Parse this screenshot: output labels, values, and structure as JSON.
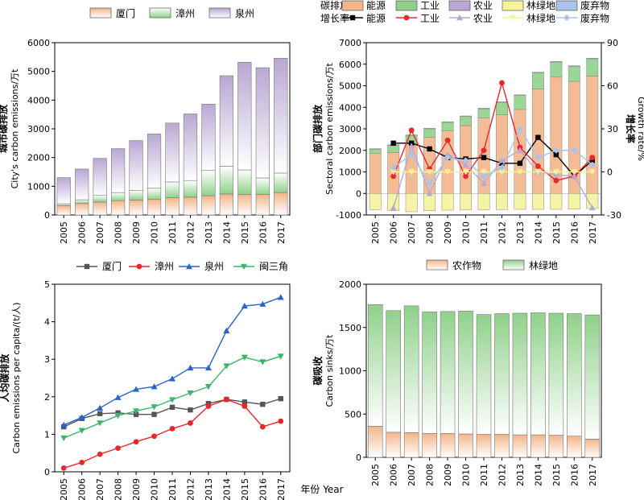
{
  "figure": {
    "shared_xlabel": "年份 Year"
  },
  "chart_data": [
    {
      "id": "a",
      "type": "bar",
      "stacked": true,
      "ylabel_cn": "城市碳排放",
      "ylabel_en": "City's carbon emissions/万t",
      "ylim": [
        0,
        6000
      ],
      "yticks": [
        0,
        1000,
        2000,
        3000,
        4000,
        5000,
        6000
      ],
      "categories": [
        "2005",
        "2006",
        "2007",
        "2008",
        "2009",
        "2010",
        "2011",
        "2012",
        "2013",
        "2014",
        "2015",
        "2016",
        "2017"
      ],
      "legend_position": "top",
      "series": [
        {
          "name": "厦门",
          "color_top": "#f3b58a",
          "color_bottom": "#ffffff",
          "values": [
            320,
            400,
            450,
            500,
            520,
            540,
            600,
            620,
            670,
            730,
            720,
            710,
            780
          ]
        },
        {
          "name": "漳州",
          "color_top": "#ffffff",
          "color_bottom": "#8fd18a",
          "values": [
            70,
            130,
            230,
            280,
            330,
            390,
            550,
            580,
            880,
            970,
            850,
            580,
            680
          ]
        },
        {
          "name": "泉州",
          "color_top": "#b9a7d3",
          "color_bottom": "#ffffff",
          "values": [
            910,
            1070,
            1290,
            1530,
            1740,
            1890,
            2050,
            2320,
            2310,
            3150,
            3750,
            3840,
            4000
          ]
        }
      ]
    },
    {
      "id": "b",
      "type": "bar+line",
      "ylabel_cn": "部门碳排放",
      "ylabel_en": "Sectoral carbon emissions/万t",
      "y2label_cn": "增长率",
      "y2label_en": "Growth rate/%",
      "ylim": [
        -1000,
        7000
      ],
      "yticks": [
        -1000,
        0,
        1000,
        2000,
        3000,
        4000,
        5000,
        6000,
        7000
      ],
      "y2lim": [
        -30,
        90
      ],
      "y2ticks": [
        -30,
        0,
        30,
        60,
        90
      ],
      "categories": [
        "2005",
        "2006",
        "2007",
        "2008",
        "2009",
        "2010",
        "2011",
        "2012",
        "2013",
        "2014",
        "2015",
        "2016",
        "2017"
      ],
      "legend_position": "top",
      "legend_row1_title": "碳排放",
      "legend_row2_title": "增长率",
      "bar_series": [
        {
          "name": "能源",
          "color": "#f3b58a",
          "values": [
            1850,
            1900,
            2300,
            2600,
            2900,
            3150,
            3500,
            3650,
            3900,
            4850,
            5400,
            5200,
            5450
          ]
        },
        {
          "name": "工业",
          "color": "#8fd18a",
          "values": [
            200,
            330,
            390,
            400,
            400,
            420,
            430,
            580,
            650,
            750,
            700,
            700,
            800
          ]
        },
        {
          "name": "农业",
          "color": "#b9a7d3",
          "values": [
            30,
            30,
            30,
            30,
            30,
            30,
            30,
            30,
            30,
            30,
            30,
            30,
            30
          ]
        },
        {
          "name": "林绿地",
          "color": "#f6f29a",
          "values": [
            -750,
            -800,
            -850,
            -800,
            -780,
            -770,
            -760,
            -750,
            -740,
            -740,
            -740,
            -730,
            -700
          ]
        },
        {
          "name": "废弃物",
          "color": "#a9c4ea",
          "values": [
            0,
            0,
            0,
            0,
            0,
            0,
            0,
            0,
            0,
            0,
            0,
            0,
            0
          ]
        }
      ],
      "line_series": [
        {
          "name": "能源",
          "color": "#000000",
          "marker": "square",
          "values": [
            null,
            20,
            20,
            16,
            10,
            9,
            10,
            6,
            6,
            24,
            12,
            -3,
            8
          ]
        },
        {
          "name": "工业",
          "color": "#e8282b",
          "marker": "circle",
          "values": [
            null,
            -3,
            29,
            2,
            22,
            -3,
            15,
            62,
            17,
            4,
            -6,
            -3,
            10
          ]
        },
        {
          "name": "农业",
          "color": "#b9a7d3",
          "marker": "triangle",
          "values": [
            null,
            -25,
            18,
            -15,
            12,
            5,
            -8,
            8,
            15,
            0,
            -2,
            -3,
            -25
          ]
        },
        {
          "name": "林绿地",
          "color": "#f6f29a",
          "marker": "triangle-down",
          "values": [
            null,
            0,
            0,
            0,
            0,
            0,
            0,
            0,
            0,
            0,
            0,
            0,
            0
          ]
        },
        {
          "name": "废弃物",
          "color": "#a9c4ea",
          "marker": "diamond",
          "values": [
            null,
            3,
            12,
            -8,
            10,
            8,
            -3,
            3,
            30,
            10,
            15,
            15,
            5
          ]
        }
      ]
    },
    {
      "id": "c",
      "type": "line",
      "ylabel_cn": "人均碳排放",
      "ylabel_en": "Carbon emissions per capita/(t/人)",
      "ylim": [
        0,
        5
      ],
      "yticks": [
        0,
        1,
        2,
        3,
        4,
        5
      ],
      "categories": [
        "2005",
        "2006",
        "2007",
        "2008",
        "2009",
        "2010",
        "2011",
        "2012",
        "2013",
        "2014",
        "2015",
        "2016",
        "2017"
      ],
      "legend_position": "top",
      "series": [
        {
          "name": "厦门",
          "color": "#555555",
          "marker": "square",
          "values": [
            1.2,
            1.42,
            1.55,
            1.57,
            1.53,
            1.53,
            1.72,
            1.65,
            1.82,
            1.93,
            1.86,
            1.8,
            1.95
          ]
        },
        {
          "name": "漳州",
          "color": "#e8282b",
          "marker": "circle",
          "values": [
            0.1,
            0.25,
            0.47,
            0.63,
            0.8,
            0.95,
            1.15,
            1.3,
            1.75,
            1.93,
            1.75,
            1.2,
            1.35
          ]
        },
        {
          "name": "泉州",
          "color": "#2b63c9",
          "marker": "triangle",
          "values": [
            1.25,
            1.45,
            1.7,
            1.98,
            2.2,
            2.27,
            2.48,
            2.77,
            2.77,
            3.76,
            4.42,
            4.47,
            4.65
          ]
        },
        {
          "name": "闽三角",
          "color": "#3cb56a",
          "marker": "triangle-down",
          "values": [
            0.9,
            1.1,
            1.3,
            1.5,
            1.62,
            1.73,
            1.92,
            2.1,
            2.27,
            2.82,
            3.05,
            2.93,
            3.08
          ]
        }
      ]
    },
    {
      "id": "d",
      "type": "bar",
      "stacked": true,
      "ylabel_cn": "碳吸收",
      "ylabel_en": "Carbon sinks/万t",
      "ylim": [
        0,
        2000
      ],
      "yticks": [
        0,
        500,
        1000,
        1500,
        2000
      ],
      "categories": [
        "2005",
        "2006",
        "2007",
        "2008",
        "2009",
        "2010",
        "2011",
        "2012",
        "2013",
        "2014",
        "2015",
        "2016",
        "2017"
      ],
      "legend_position": "top",
      "series": [
        {
          "name": "农作物",
          "color_top": "#f3b58a",
          "color_bottom": "#ffffff",
          "values": [
            360,
            290,
            285,
            275,
            275,
            270,
            265,
            265,
            260,
            260,
            255,
            245,
            210
          ]
        },
        {
          "name": "林绿地",
          "color_top": "#8fd18a",
          "color_bottom": "#ffffff",
          "values": [
            1405,
            1405,
            1465,
            1405,
            1410,
            1420,
            1385,
            1395,
            1405,
            1410,
            1410,
            1415,
            1435
          ]
        }
      ]
    }
  ]
}
